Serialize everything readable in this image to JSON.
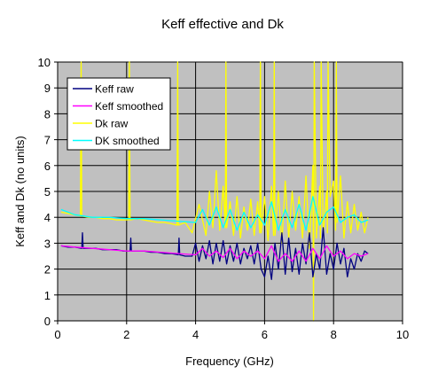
{
  "chart_data": {
    "type": "line",
    "title": "Keff effective and Dk",
    "xlabel": "Frequency (GHz)",
    "ylabel": "Keff and Dk (no units)",
    "xlim": [
      0,
      10
    ],
    "ylim": [
      0,
      10
    ],
    "x_ticks": [
      "0",
      "2",
      "4",
      "6",
      "8",
      "10"
    ],
    "y_ticks": [
      "0",
      "1",
      "2",
      "3",
      "4",
      "5",
      "6",
      "7",
      "8",
      "9",
      "10"
    ],
    "grid": true,
    "plot_background": "#c0c0c0",
    "legend_position": "top-left",
    "series": [
      {
        "name": "Keff raw",
        "color": "#000080",
        "x": [
          0.1,
          0.3,
          0.5,
          0.7,
          0.72,
          0.74,
          0.9,
          1.1,
          1.3,
          1.5,
          1.7,
          1.9,
          2.1,
          2.12,
          2.14,
          2.3,
          2.5,
          2.7,
          2.9,
          3.1,
          3.3,
          3.5,
          3.52,
          3.54,
          3.7,
          3.9,
          4.0,
          4.1,
          4.2,
          4.3,
          4.4,
          4.5,
          4.6,
          4.7,
          4.8,
          4.9,
          5.0,
          5.1,
          5.2,
          5.3,
          5.4,
          5.5,
          5.6,
          5.7,
          5.8,
          5.9,
          6.0,
          6.1,
          6.2,
          6.3,
          6.4,
          6.5,
          6.6,
          6.7,
          6.8,
          6.9,
          7.0,
          7.1,
          7.2,
          7.3,
          7.4,
          7.5,
          7.6,
          7.7,
          7.8,
          7.9,
          8.0,
          8.1,
          8.2,
          8.3,
          8.4,
          8.5,
          8.6,
          8.7,
          8.8,
          8.9,
          9.0
        ],
        "y": [
          2.9,
          2.85,
          2.85,
          2.8,
          3.4,
          2.8,
          2.8,
          2.8,
          2.75,
          2.75,
          2.75,
          2.7,
          2.7,
          3.2,
          2.7,
          2.7,
          2.7,
          2.65,
          2.65,
          2.6,
          2.6,
          2.55,
          3.2,
          2.55,
          2.5,
          2.5,
          3.0,
          2.3,
          2.9,
          2.4,
          3.1,
          2.2,
          3.0,
          2.3,
          3.1,
          2.2,
          2.9,
          2.3,
          3.0,
          2.2,
          2.8,
          2.4,
          2.9,
          2.2,
          3.0,
          2.0,
          1.7,
          2.5,
          1.6,
          3.0,
          2.0,
          3.4,
          1.8,
          3.2,
          1.9,
          2.8,
          1.8,
          3.0,
          2.2,
          3.4,
          1.7,
          2.6,
          2.0,
          3.6,
          1.8,
          2.6,
          2.0,
          3.0,
          2.2,
          2.8,
          1.7,
          2.4,
          2.0,
          2.6,
          2.3,
          2.7,
          2.6
        ]
      },
      {
        "name": "Keff smoothed",
        "color": "#ff00ff",
        "x": [
          0.1,
          0.5,
          1.0,
          1.5,
          2.0,
          2.5,
          3.0,
          3.5,
          4.0,
          4.2,
          4.4,
          4.6,
          4.8,
          5.0,
          5.2,
          5.4,
          5.6,
          5.8,
          6.0,
          6.2,
          6.4,
          6.6,
          6.8,
          7.0,
          7.2,
          7.4,
          7.6,
          7.8,
          8.0,
          8.2,
          8.4,
          8.6,
          8.8,
          9.0
        ],
        "y": [
          2.9,
          2.85,
          2.8,
          2.75,
          2.7,
          2.7,
          2.65,
          2.6,
          2.55,
          2.8,
          2.5,
          2.7,
          2.45,
          2.8,
          2.4,
          2.7,
          2.5,
          2.7,
          2.4,
          2.9,
          2.3,
          2.6,
          2.3,
          2.7,
          2.3,
          2.8,
          2.4,
          2.9,
          2.5,
          2.7,
          2.4,
          2.6,
          2.5,
          2.6
        ]
      },
      {
        "name": "Dk raw",
        "color": "#ffff00",
        "x": [
          0.1,
          0.3,
          0.5,
          0.66,
          0.68,
          0.7,
          0.9,
          1.1,
          1.3,
          1.5,
          1.7,
          1.9,
          2.06,
          2.08,
          2.1,
          2.3,
          2.5,
          2.7,
          2.9,
          3.1,
          3.3,
          3.46,
          3.48,
          3.5,
          3.7,
          3.9,
          4.1,
          4.3,
          4.4,
          4.5,
          4.6,
          4.7,
          4.8,
          4.86,
          4.88,
          4.9,
          5.0,
          5.1,
          5.2,
          5.3,
          5.4,
          5.5,
          5.6,
          5.7,
          5.8,
          5.86,
          5.88,
          5.9,
          6.0,
          6.1,
          6.2,
          6.26,
          6.28,
          6.3,
          6.4,
          6.5,
          6.6,
          6.7,
          6.8,
          6.9,
          7.0,
          7.1,
          7.2,
          7.3,
          7.4,
          7.42,
          7.44,
          7.5,
          7.6,
          7.62,
          7.64,
          7.7,
          7.8,
          7.82,
          7.84,
          7.9,
          8.0,
          8.06,
          8.08,
          8.1,
          8.2,
          8.3,
          8.4,
          8.5,
          8.6,
          8.7,
          8.8,
          8.9,
          9.0
        ],
        "y": [
          4.2,
          4.15,
          4.1,
          4.05,
          10,
          4.05,
          4.0,
          4.0,
          3.95,
          3.95,
          3.9,
          3.9,
          3.9,
          10,
          3.9,
          3.95,
          3.9,
          3.85,
          3.8,
          3.8,
          3.75,
          3.7,
          10,
          3.7,
          3.8,
          3.4,
          4.5,
          3.3,
          5.0,
          3.6,
          5.8,
          3.5,
          5.2,
          3.6,
          10,
          3.6,
          4.6,
          3.3,
          4.8,
          3.2,
          4.4,
          3.5,
          4.7,
          3.3,
          4.6,
          3.4,
          10,
          3.4,
          4.8,
          3.1,
          5.2,
          3.3,
          10,
          3.3,
          5.0,
          3.0,
          5.4,
          3.2,
          5.0,
          3.5,
          4.8,
          3.2,
          5.6,
          2.8,
          6.0,
          0,
          10,
          3.2,
          5.2,
          3.2,
          10,
          3.3,
          5.0,
          3.4,
          10,
          4.8,
          5.4,
          3.5,
          10,
          3.8,
          5.6,
          3.2,
          4.6,
          3.4,
          4.5,
          3.5,
          4.2,
          3.4,
          4.0
        ]
      },
      {
        "name": "DK smoothed",
        "color": "#00ffff",
        "x": [
          0.1,
          0.5,
          1.0,
          1.5,
          2.0,
          2.5,
          3.0,
          3.5,
          4.0,
          4.2,
          4.4,
          4.6,
          4.8,
          5.0,
          5.2,
          5.4,
          5.6,
          5.8,
          6.0,
          6.2,
          6.4,
          6.6,
          6.8,
          7.0,
          7.2,
          7.4,
          7.6,
          7.8,
          8.0,
          8.2,
          8.4,
          8.6,
          8.8,
          9.0
        ],
        "y": [
          4.3,
          4.1,
          4.0,
          4.0,
          3.95,
          3.95,
          3.9,
          3.85,
          3.8,
          4.3,
          3.7,
          4.4,
          3.6,
          4.3,
          3.5,
          4.2,
          3.6,
          4.1,
          3.7,
          4.6,
          3.5,
          4.3,
          3.6,
          4.5,
          3.5,
          4.8,
          3.7,
          4.2,
          4.4,
          3.8,
          4.0,
          4.1,
          3.8,
          3.9
        ]
      }
    ]
  }
}
